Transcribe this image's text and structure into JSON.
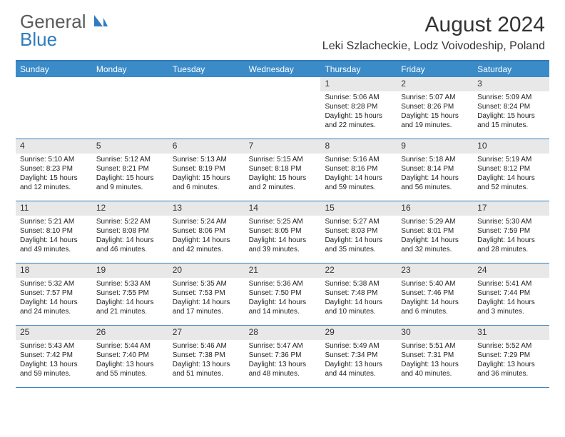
{
  "logo": {
    "part1": "General",
    "part2": "Blue"
  },
  "title": "August 2024",
  "location": "Leki Szlacheckie, Lodz Voivodeship, Poland",
  "colors": {
    "header_bar": "#3b8bc9",
    "border": "#2f7bbf",
    "daynum_bg": "#e8e8e8",
    "text": "#222222",
    "logo_gray": "#5a5a5a",
    "logo_blue": "#2f7bbf"
  },
  "dow": [
    "Sunday",
    "Monday",
    "Tuesday",
    "Wednesday",
    "Thursday",
    "Friday",
    "Saturday"
  ],
  "weeks": [
    [
      {
        "n": "",
        "sr": "",
        "ss": "",
        "dl": ""
      },
      {
        "n": "",
        "sr": "",
        "ss": "",
        "dl": ""
      },
      {
        "n": "",
        "sr": "",
        "ss": "",
        "dl": ""
      },
      {
        "n": "",
        "sr": "",
        "ss": "",
        "dl": ""
      },
      {
        "n": "1",
        "sr": "Sunrise: 5:06 AM",
        "ss": "Sunset: 8:28 PM",
        "dl": "Daylight: 15 hours and 22 minutes."
      },
      {
        "n": "2",
        "sr": "Sunrise: 5:07 AM",
        "ss": "Sunset: 8:26 PM",
        "dl": "Daylight: 15 hours and 19 minutes."
      },
      {
        "n": "3",
        "sr": "Sunrise: 5:09 AM",
        "ss": "Sunset: 8:24 PM",
        "dl": "Daylight: 15 hours and 15 minutes."
      }
    ],
    [
      {
        "n": "4",
        "sr": "Sunrise: 5:10 AM",
        "ss": "Sunset: 8:23 PM",
        "dl": "Daylight: 15 hours and 12 minutes."
      },
      {
        "n": "5",
        "sr": "Sunrise: 5:12 AM",
        "ss": "Sunset: 8:21 PM",
        "dl": "Daylight: 15 hours and 9 minutes."
      },
      {
        "n": "6",
        "sr": "Sunrise: 5:13 AM",
        "ss": "Sunset: 8:19 PM",
        "dl": "Daylight: 15 hours and 6 minutes."
      },
      {
        "n": "7",
        "sr": "Sunrise: 5:15 AM",
        "ss": "Sunset: 8:18 PM",
        "dl": "Daylight: 15 hours and 2 minutes."
      },
      {
        "n": "8",
        "sr": "Sunrise: 5:16 AM",
        "ss": "Sunset: 8:16 PM",
        "dl": "Daylight: 14 hours and 59 minutes."
      },
      {
        "n": "9",
        "sr": "Sunrise: 5:18 AM",
        "ss": "Sunset: 8:14 PM",
        "dl": "Daylight: 14 hours and 56 minutes."
      },
      {
        "n": "10",
        "sr": "Sunrise: 5:19 AM",
        "ss": "Sunset: 8:12 PM",
        "dl": "Daylight: 14 hours and 52 minutes."
      }
    ],
    [
      {
        "n": "11",
        "sr": "Sunrise: 5:21 AM",
        "ss": "Sunset: 8:10 PM",
        "dl": "Daylight: 14 hours and 49 minutes."
      },
      {
        "n": "12",
        "sr": "Sunrise: 5:22 AM",
        "ss": "Sunset: 8:08 PM",
        "dl": "Daylight: 14 hours and 46 minutes."
      },
      {
        "n": "13",
        "sr": "Sunrise: 5:24 AM",
        "ss": "Sunset: 8:06 PM",
        "dl": "Daylight: 14 hours and 42 minutes."
      },
      {
        "n": "14",
        "sr": "Sunrise: 5:25 AM",
        "ss": "Sunset: 8:05 PM",
        "dl": "Daylight: 14 hours and 39 minutes."
      },
      {
        "n": "15",
        "sr": "Sunrise: 5:27 AM",
        "ss": "Sunset: 8:03 PM",
        "dl": "Daylight: 14 hours and 35 minutes."
      },
      {
        "n": "16",
        "sr": "Sunrise: 5:29 AM",
        "ss": "Sunset: 8:01 PM",
        "dl": "Daylight: 14 hours and 32 minutes."
      },
      {
        "n": "17",
        "sr": "Sunrise: 5:30 AM",
        "ss": "Sunset: 7:59 PM",
        "dl": "Daylight: 14 hours and 28 minutes."
      }
    ],
    [
      {
        "n": "18",
        "sr": "Sunrise: 5:32 AM",
        "ss": "Sunset: 7:57 PM",
        "dl": "Daylight: 14 hours and 24 minutes."
      },
      {
        "n": "19",
        "sr": "Sunrise: 5:33 AM",
        "ss": "Sunset: 7:55 PM",
        "dl": "Daylight: 14 hours and 21 minutes."
      },
      {
        "n": "20",
        "sr": "Sunrise: 5:35 AM",
        "ss": "Sunset: 7:53 PM",
        "dl": "Daylight: 14 hours and 17 minutes."
      },
      {
        "n": "21",
        "sr": "Sunrise: 5:36 AM",
        "ss": "Sunset: 7:50 PM",
        "dl": "Daylight: 14 hours and 14 minutes."
      },
      {
        "n": "22",
        "sr": "Sunrise: 5:38 AM",
        "ss": "Sunset: 7:48 PM",
        "dl": "Daylight: 14 hours and 10 minutes."
      },
      {
        "n": "23",
        "sr": "Sunrise: 5:40 AM",
        "ss": "Sunset: 7:46 PM",
        "dl": "Daylight: 14 hours and 6 minutes."
      },
      {
        "n": "24",
        "sr": "Sunrise: 5:41 AM",
        "ss": "Sunset: 7:44 PM",
        "dl": "Daylight: 14 hours and 3 minutes."
      }
    ],
    [
      {
        "n": "25",
        "sr": "Sunrise: 5:43 AM",
        "ss": "Sunset: 7:42 PM",
        "dl": "Daylight: 13 hours and 59 minutes."
      },
      {
        "n": "26",
        "sr": "Sunrise: 5:44 AM",
        "ss": "Sunset: 7:40 PM",
        "dl": "Daylight: 13 hours and 55 minutes."
      },
      {
        "n": "27",
        "sr": "Sunrise: 5:46 AM",
        "ss": "Sunset: 7:38 PM",
        "dl": "Daylight: 13 hours and 51 minutes."
      },
      {
        "n": "28",
        "sr": "Sunrise: 5:47 AM",
        "ss": "Sunset: 7:36 PM",
        "dl": "Daylight: 13 hours and 48 minutes."
      },
      {
        "n": "29",
        "sr": "Sunrise: 5:49 AM",
        "ss": "Sunset: 7:34 PM",
        "dl": "Daylight: 13 hours and 44 minutes."
      },
      {
        "n": "30",
        "sr": "Sunrise: 5:51 AM",
        "ss": "Sunset: 7:31 PM",
        "dl": "Daylight: 13 hours and 40 minutes."
      },
      {
        "n": "31",
        "sr": "Sunrise: 5:52 AM",
        "ss": "Sunset: 7:29 PM",
        "dl": "Daylight: 13 hours and 36 minutes."
      }
    ]
  ]
}
